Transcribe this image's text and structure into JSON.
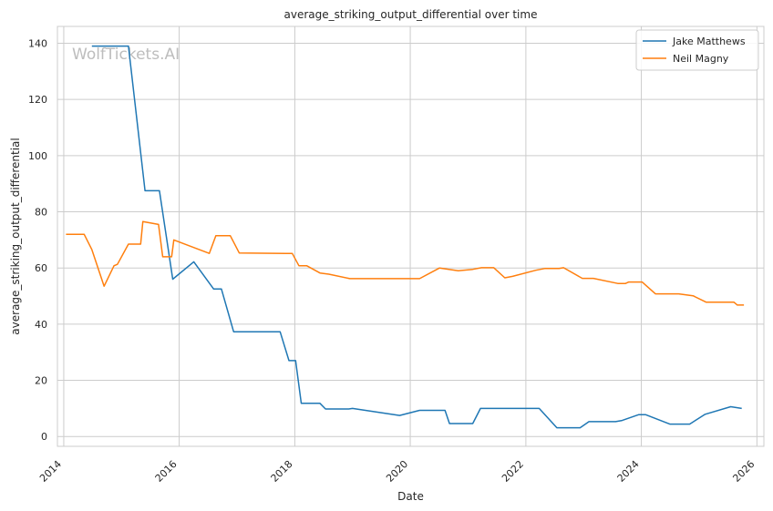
{
  "chart_data": {
    "type": "line",
    "title": "average_striking_output_differential over time",
    "xlabel": "Date",
    "ylabel": "average_striking_output_differential",
    "watermark": "WolfTickets.AI",
    "x_ticks": [
      "2014",
      "2016",
      "2018",
      "2020",
      "2022",
      "2024",
      "2026"
    ],
    "y_ticks": [
      "0",
      "20",
      "40",
      "60",
      "80",
      "100",
      "120",
      "140"
    ],
    "xlim": [
      "2013-11-22",
      "2026-02-14"
    ],
    "ylim": [
      -3.5,
      146
    ],
    "grid": true,
    "legend_position": "top-right",
    "series": [
      {
        "name": "Jake Matthews",
        "color": "#1f77b4",
        "points": [
          [
            "2014-06-28",
            139
          ],
          [
            "2015-02-14",
            139
          ],
          [
            "2015-05-30",
            87.5
          ],
          [
            "2015-08-29",
            87.5
          ],
          [
            "2015-11-21",
            56
          ],
          [
            "2016-04-02",
            62.2
          ],
          [
            "2016-08-06",
            52.5
          ],
          [
            "2016-09-24",
            52.5
          ],
          [
            "2016-12-10",
            37.3
          ],
          [
            "2017-09-30",
            37.3
          ],
          [
            "2017-11-25",
            27
          ],
          [
            "2018-01-06",
            27
          ],
          [
            "2018-02-11",
            11.8
          ],
          [
            "2018-06-09",
            11.8
          ],
          [
            "2018-07-14",
            9.8
          ],
          [
            "2018-12-08",
            9.8
          ],
          [
            "2019-01-01",
            10
          ],
          [
            "2019-10-26",
            7.5
          ],
          [
            "2020-02-29",
            9.3
          ],
          [
            "2020-08-08",
            9.3
          ],
          [
            "2020-09-05",
            4.6
          ],
          [
            "2021-01-30",
            4.6
          ],
          [
            "2021-03-20",
            10
          ],
          [
            "2022-03-26",
            10
          ],
          [
            "2022-07-16",
            3.1
          ],
          [
            "2022-12-10",
            3.1
          ],
          [
            "2023-02-04",
            5.3
          ],
          [
            "2023-07-22",
            5.3
          ],
          [
            "2023-09-02",
            5.7
          ],
          [
            "2023-12-16",
            7.8
          ],
          [
            "2024-01-27",
            7.8
          ],
          [
            "2024-06-29",
            4.4
          ],
          [
            "2024-11-02",
            4.4
          ],
          [
            "2025-02-08",
            7.9
          ],
          [
            "2025-07-19",
            10.6
          ],
          [
            "2025-09-27",
            10
          ]
        ]
      },
      {
        "name": "Neil Magny",
        "color": "#ff7f0e",
        "points": [
          [
            "2014-01-15",
            72
          ],
          [
            "2014-05-10",
            72
          ],
          [
            "2014-06-28",
            66.5
          ],
          [
            "2014-09-13",
            53.5
          ],
          [
            "2014-11-15",
            60.8
          ],
          [
            "2014-12-06",
            61.3
          ],
          [
            "2015-02-14",
            68.5
          ],
          [
            "2015-05-02",
            68.5
          ],
          [
            "2015-05-16",
            76.5
          ],
          [
            "2015-08-23",
            75.5
          ],
          [
            "2015-09-19",
            64
          ],
          [
            "2015-11-14",
            64
          ],
          [
            "2015-11-28",
            70
          ],
          [
            "2016-07-09",
            65.2
          ],
          [
            "2016-08-20",
            71.5
          ],
          [
            "2016-11-19",
            71.5
          ],
          [
            "2017-01-15",
            65.3
          ],
          [
            "2017-11-04",
            65.2
          ],
          [
            "2017-12-16",
            65.2
          ],
          [
            "2018-01-27",
            60.8
          ],
          [
            "2018-03-17",
            60.8
          ],
          [
            "2018-06-09",
            58.2
          ],
          [
            "2018-08-04",
            57.8
          ],
          [
            "2018-12-15",
            56.2
          ],
          [
            "2020-02-29",
            56.2
          ],
          [
            "2020-07-04",
            60
          ],
          [
            "2020-10-31",
            59
          ],
          [
            "2021-01-30",
            59.5
          ],
          [
            "2021-03-27",
            60.1
          ],
          [
            "2021-06-12",
            60.1
          ],
          [
            "2021-08-21",
            56.5
          ],
          [
            "2021-10-09",
            57
          ],
          [
            "2022-03-05",
            59.2
          ],
          [
            "2022-04-30",
            59.8
          ],
          [
            "2022-07-30",
            59.8
          ],
          [
            "2022-08-27",
            60.1
          ],
          [
            "2022-12-24",
            56.3
          ],
          [
            "2023-03-04",
            56.3
          ],
          [
            "2023-08-05",
            54.5
          ],
          [
            "2023-09-23",
            54.5
          ],
          [
            "2023-10-14",
            55
          ],
          [
            "2024-01-06",
            55
          ],
          [
            "2024-03-30",
            50.8
          ],
          [
            "2024-08-24",
            50.8
          ],
          [
            "2024-11-23",
            50.1
          ],
          [
            "2025-02-15",
            47.8
          ],
          [
            "2025-08-09",
            47.8
          ],
          [
            "2025-08-30",
            46.8
          ],
          [
            "2025-10-11",
            46.8
          ]
        ]
      }
    ]
  }
}
